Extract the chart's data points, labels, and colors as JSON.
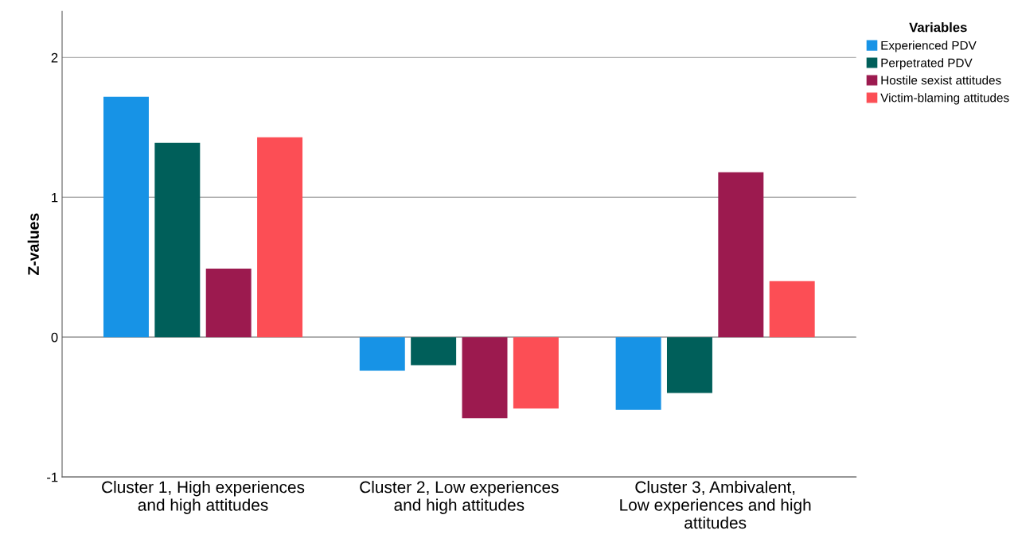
{
  "chart_data": {
    "type": "bar",
    "ylabel": "Z-values",
    "legend_title": "Variables",
    "categories": [
      "Cluster 1, High experiences\nand high attitudes",
      "Cluster 2, Low experiences\nand high attitudes",
      "Cluster 3, Ambivalent,\nLow experiences and high\nattitudes"
    ],
    "series": [
      {
        "name": "Experienced PDV",
        "color": "#1793e6",
        "values": [
          1.72,
          -0.24,
          -0.52
        ]
      },
      {
        "name": "Perpetrated PDV",
        "color": "#005f5a",
        "values": [
          1.39,
          -0.2,
          -0.4
        ]
      },
      {
        "name": "Hostile sexist attitudes",
        "color": "#9c1a4f",
        "values": [
          0.49,
          -0.58,
          1.18
        ]
      },
      {
        "name": "Victim-blaming attitudes",
        "color": "#fc4e55",
        "values": [
          1.43,
          -0.51,
          0.4
        ]
      }
    ],
    "ylim": [
      -1,
      2.33
    ],
    "yticks": [
      -1,
      0,
      1,
      2
    ],
    "grid": "y",
    "legend": "top right"
  }
}
